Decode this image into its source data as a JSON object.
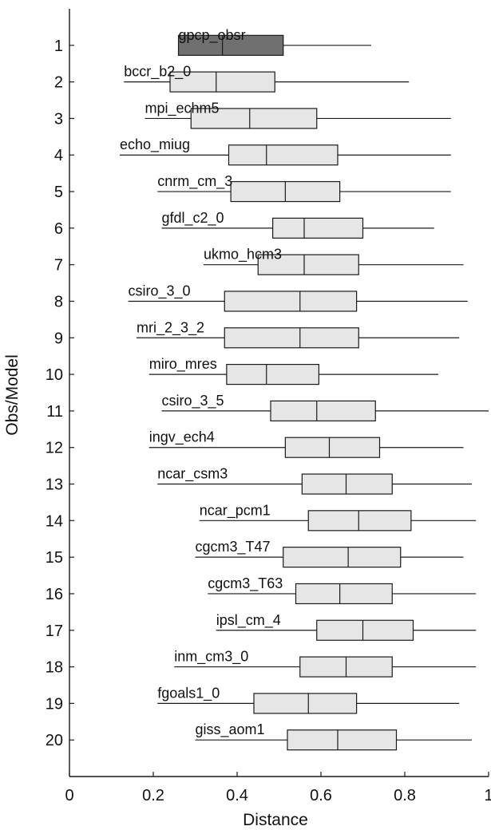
{
  "chart_data": {
    "type": "boxplot",
    "orientation": "horizontal",
    "xlabel": "Distance",
    "ylabel": "Obs/Model",
    "xlim": [
      0,
      1
    ],
    "ylim": [
      21,
      0
    ],
    "xticks": [
      0,
      0.2,
      0.4,
      0.6,
      0.8,
      1
    ],
    "xtick_labels": [
      "0",
      "0.2",
      "0.4",
      "0.6",
      "0.8",
      "1"
    ],
    "yticks": [
      1,
      2,
      3,
      4,
      5,
      6,
      7,
      8,
      9,
      10,
      11,
      12,
      13,
      14,
      15,
      16,
      17,
      18,
      19,
      20
    ],
    "colors": {
      "observed_box": "#707070",
      "model_box": "#e6e6e6",
      "stroke": "#1a1a1a"
    },
    "boxes": [
      {
        "id": 1,
        "label": "gpcp_obsr",
        "whisker_low": 0.26,
        "q1": 0.26,
        "median": 0.365,
        "q3": 0.51,
        "whisker_high": 0.72,
        "observed": true
      },
      {
        "id": 2,
        "label": "bccr_b2_0",
        "whisker_low": 0.13,
        "q1": 0.24,
        "median": 0.35,
        "q3": 0.49,
        "whisker_high": 0.81
      },
      {
        "id": 3,
        "label": "mpi_echm5",
        "whisker_low": 0.18,
        "q1": 0.29,
        "median": 0.43,
        "q3": 0.59,
        "whisker_high": 0.91
      },
      {
        "id": 4,
        "label": "echo_miug",
        "whisker_low": 0.12,
        "q1": 0.38,
        "median": 0.47,
        "q3": 0.64,
        "whisker_high": 0.91
      },
      {
        "id": 5,
        "label": "cnrm_cm_3",
        "whisker_low": 0.21,
        "q1": 0.385,
        "median": 0.515,
        "q3": 0.645,
        "whisker_high": 0.91
      },
      {
        "id": 6,
        "label": "gfdl_c2_0",
        "whisker_low": 0.22,
        "q1": 0.485,
        "median": 0.56,
        "q3": 0.7,
        "whisker_high": 0.87
      },
      {
        "id": 7,
        "label": "ukmo_hcm3",
        "whisker_low": 0.32,
        "q1": 0.45,
        "median": 0.56,
        "q3": 0.69,
        "whisker_high": 0.94
      },
      {
        "id": 8,
        "label": "csiro_3_0",
        "whisker_low": 0.14,
        "q1": 0.37,
        "median": 0.55,
        "q3": 0.685,
        "whisker_high": 0.95
      },
      {
        "id": 9,
        "label": "mri_2_3_2",
        "whisker_low": 0.16,
        "q1": 0.37,
        "median": 0.55,
        "q3": 0.69,
        "whisker_high": 0.93
      },
      {
        "id": 10,
        "label": "miro_mres",
        "whisker_low": 0.19,
        "q1": 0.375,
        "median": 0.47,
        "q3": 0.595,
        "whisker_high": 0.88
      },
      {
        "id": 11,
        "label": "csiro_3_5",
        "whisker_low": 0.22,
        "q1": 0.48,
        "median": 0.59,
        "q3": 0.73,
        "whisker_high": 1.0
      },
      {
        "id": 12,
        "label": "ingv_ech4",
        "whisker_low": 0.19,
        "q1": 0.515,
        "median": 0.62,
        "q3": 0.74,
        "whisker_high": 0.94
      },
      {
        "id": 13,
        "label": "ncar_csm3",
        "whisker_low": 0.21,
        "q1": 0.555,
        "median": 0.66,
        "q3": 0.77,
        "whisker_high": 0.96
      },
      {
        "id": 14,
        "label": "ncar_pcm1",
        "whisker_low": 0.31,
        "q1": 0.57,
        "median": 0.69,
        "q3": 0.815,
        "whisker_high": 0.97
      },
      {
        "id": 15,
        "label": "cgcm3_T47",
        "whisker_low": 0.3,
        "q1": 0.51,
        "median": 0.665,
        "q3": 0.79,
        "whisker_high": 0.94
      },
      {
        "id": 16,
        "label": "cgcm3_T63",
        "whisker_low": 0.33,
        "q1": 0.54,
        "median": 0.645,
        "q3": 0.77,
        "whisker_high": 0.97
      },
      {
        "id": 17,
        "label": "ipsl_cm_4",
        "whisker_low": 0.35,
        "q1": 0.59,
        "median": 0.7,
        "q3": 0.82,
        "whisker_high": 0.97
      },
      {
        "id": 18,
        "label": "inm_cm3_0",
        "whisker_low": 0.25,
        "q1": 0.55,
        "median": 0.66,
        "q3": 0.77,
        "whisker_high": 0.97
      },
      {
        "id": 19,
        "label": "fgoals1_0",
        "whisker_low": 0.21,
        "q1": 0.44,
        "median": 0.57,
        "q3": 0.685,
        "whisker_high": 0.93
      },
      {
        "id": 20,
        "label": "giss_aom1",
        "whisker_low": 0.3,
        "q1": 0.52,
        "median": 0.64,
        "q3": 0.78,
        "whisker_high": 0.96
      }
    ]
  }
}
